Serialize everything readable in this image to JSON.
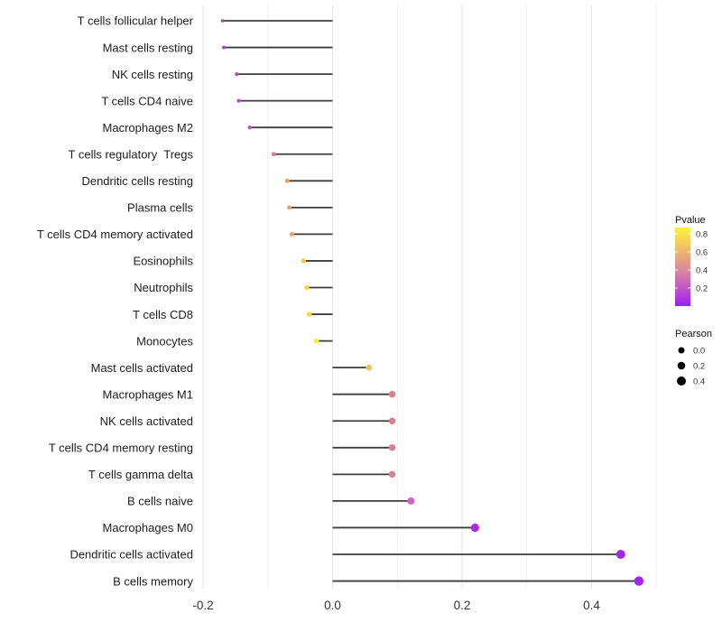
{
  "chart_data": {
    "type": "lollipop",
    "orientation": "horizontal",
    "title": "",
    "xlabel": "",
    "ylabel": "",
    "x_axis": {
      "ticks": [
        -0.2,
        0.0,
        0.2,
        0.4
      ],
      "tick_labels": [
        "-0.2",
        "0.0",
        "0.2",
        "0.4"
      ],
      "minor_ticks": [
        -0.1,
        0.1,
        0.3,
        0.5
      ],
      "range": [
        -0.215,
        0.512
      ],
      "grid": true
    },
    "points": [
      {
        "label": "T cells follicular helper",
        "pearson": -0.17,
        "pvalue": 0.12,
        "color": "#A93BD2",
        "radius_px": 1.8
      },
      {
        "label": "Mast cells resting",
        "pearson": -0.168,
        "pvalue": 0.12,
        "color": "#A93BD2",
        "radius_px": 1.9
      },
      {
        "label": "NK cells resting",
        "pearson": -0.148,
        "pvalue": 0.2,
        "color": "#BC4EC8",
        "radius_px": 2.1
      },
      {
        "label": "T cells CD4 naive",
        "pearson": -0.145,
        "pvalue": 0.2,
        "color": "#BC4EC8",
        "radius_px": 2.1
      },
      {
        "label": "Macrophages M2",
        "pearson": -0.128,
        "pvalue": 0.22,
        "color": "#C054C6",
        "radius_px": 2.2
      },
      {
        "label": "T cells regulatory  Tregs",
        "pearson": -0.091,
        "pvalue": 0.45,
        "color": "#D8808E",
        "radius_px": 2.4
      },
      {
        "label": "Dendritic cells resting",
        "pearson": -0.07,
        "pvalue": 0.6,
        "color": "#ECA46D",
        "radius_px": 2.5
      },
      {
        "label": "Plasma cells",
        "pearson": -0.067,
        "pvalue": 0.6,
        "color": "#ECA46D",
        "radius_px": 2.5
      },
      {
        "label": "T cells CD4 memory activated",
        "pearson": -0.063,
        "pvalue": 0.6,
        "color": "#ECA46D",
        "radius_px": 2.5
      },
      {
        "label": "Eosinophils",
        "pearson": -0.045,
        "pvalue": 0.74,
        "color": "#F1CE45",
        "radius_px": 2.7
      },
      {
        "label": "Neutrophils",
        "pearson": -0.04,
        "pvalue": 0.77,
        "color": "#F2D643",
        "radius_px": 2.7
      },
      {
        "label": "T cells CD8",
        "pearson": -0.036,
        "pvalue": 0.77,
        "color": "#F2D643",
        "radius_px": 2.7
      },
      {
        "label": "Monocytes",
        "pearson": -0.025,
        "pvalue": 0.85,
        "color": "#F8ED37",
        "radius_px": 2.9
      },
      {
        "label": "Mast cells activated",
        "pearson": 0.056,
        "pvalue": 0.7,
        "color": "#EDC257",
        "radius_px": 3.3
      },
      {
        "label": "Macrophages M1",
        "pearson": 0.092,
        "pvalue": 0.45,
        "color": "#D8808E",
        "radius_px": 3.7
      },
      {
        "label": "NK cells activated",
        "pearson": 0.092,
        "pvalue": 0.45,
        "color": "#D8808E",
        "radius_px": 3.7
      },
      {
        "label": "T cells CD4 memory resting",
        "pearson": 0.092,
        "pvalue": 0.45,
        "color": "#D8808E",
        "radius_px": 3.7
      },
      {
        "label": "T cells gamma delta",
        "pearson": 0.092,
        "pvalue": 0.45,
        "color": "#D8808E",
        "radius_px": 3.7
      },
      {
        "label": "B cells naive",
        "pearson": 0.121,
        "pvalue": 0.3,
        "color": "#CB67C3",
        "radius_px": 4.0
      },
      {
        "label": "Macrophages M0",
        "pearson": 0.22,
        "pvalue": 0.08,
        "color": "#AA2BE2",
        "radius_px": 4.6
      },
      {
        "label": "Dendritic cells activated",
        "pearson": 0.445,
        "pvalue": 0.03,
        "color": "#A326EE",
        "radius_px": 5.0
      },
      {
        "label": "B cells memory",
        "pearson": 0.473,
        "pvalue": 0.02,
        "color": "#A326EE",
        "radius_px": 5.2
      }
    ],
    "legend": {
      "position": "right",
      "pvalue": {
        "title": "Pvalue",
        "tick_values": [
          0.8,
          0.6,
          0.4,
          0.2
        ],
        "tick_labels": [
          "0.8",
          "0.6",
          "0.4",
          "0.2"
        ],
        "range": [
          0,
          0.87
        ],
        "gradient_stops": [
          {
            "offset": 0.0,
            "color": "#A01BF2"
          },
          {
            "offset": 0.22,
            "color": "#BE53C9"
          },
          {
            "offset": 0.45,
            "color": "#D9879F"
          },
          {
            "offset": 0.62,
            "color": "#E8A57C"
          },
          {
            "offset": 0.8,
            "color": "#F3CC5C"
          },
          {
            "offset": 1.0,
            "color": "#FBF23C"
          }
        ]
      },
      "pearson": {
        "title": "Pearson",
        "entries": [
          {
            "label": "0.0",
            "radius_px": 3.5
          },
          {
            "label": "0.2",
            "radius_px": 4.3
          },
          {
            "label": "0.4",
            "radius_px": 5.0
          }
        ]
      }
    },
    "style": {
      "stem_color": "#3d3d3d",
      "grid_major_color": "#e4e4e4",
      "grid_minor_color": "#f1f1f1",
      "category_text_color": "#1c1c1c",
      "axis_text_color": "#333333",
      "legend_text_color": "#333333",
      "legend_title_color": "#111111",
      "legend_dot_color": "#000000",
      "background": "#ffffff"
    }
  }
}
